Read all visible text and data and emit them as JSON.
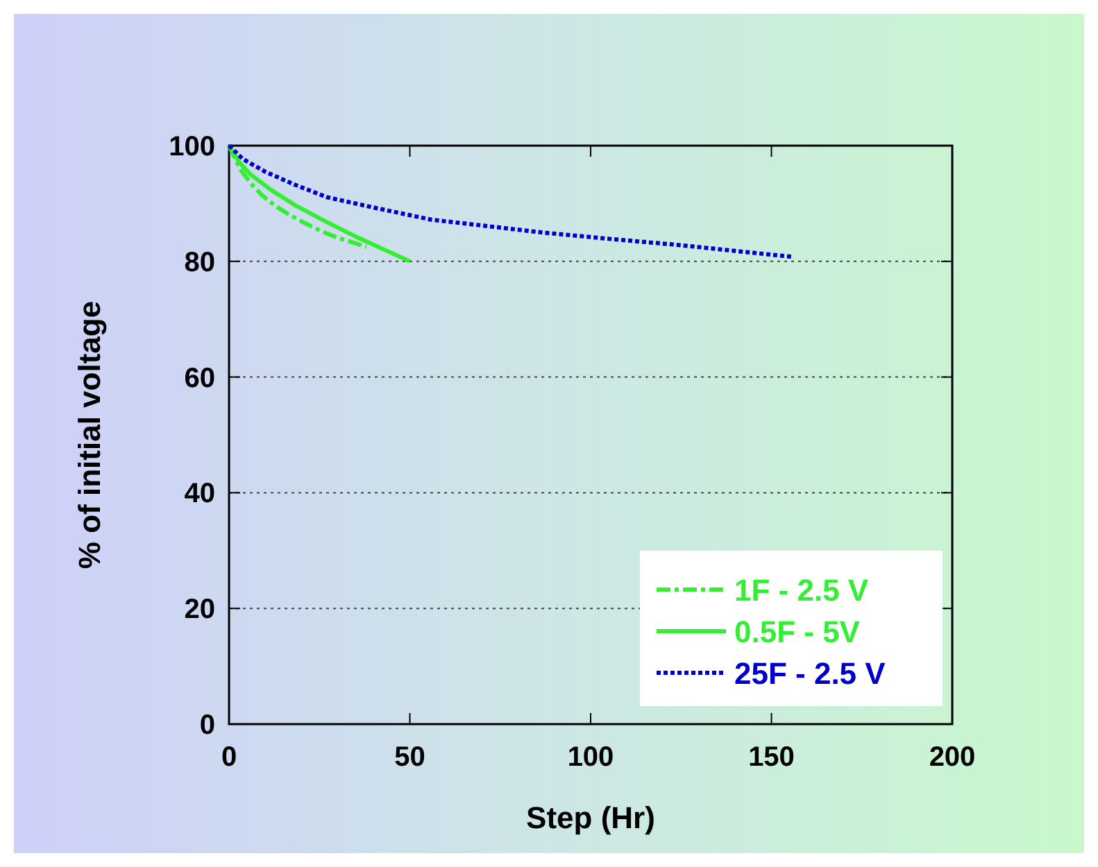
{
  "chart_data": {
    "type": "line",
    "xlabel": "Step (Hr)",
    "ylabel": "% of initial voltage",
    "xlim": [
      0,
      200
    ],
    "ylim": [
      0,
      100
    ],
    "xticks": [
      0,
      50,
      100,
      150,
      200
    ],
    "yticks": [
      0,
      20,
      40,
      60,
      80,
      100
    ],
    "grid": "y",
    "legend": "bottom right",
    "marker": "none",
    "series": [
      {
        "name": "1F - 2.5 V",
        "color": "#33ee33",
        "line_style": "dashdot",
        "x": [
          0,
          3,
          6,
          9,
          13,
          16.6,
          21,
          25.6,
          30,
          34.5,
          38
        ],
        "values": [
          100,
          96,
          93.5,
          91.5,
          89.5,
          88.1,
          86.6,
          85.2,
          84.1,
          83.2,
          82.5
        ]
      },
      {
        "name": "0.5F - 5V",
        "color": "#33ee33",
        "line_style": "solid",
        "x": [
          0,
          3,
          6,
          11.5,
          18,
          27,
          35,
          43,
          50
        ],
        "values": [
          100,
          97,
          95,
          92.4,
          89.8,
          86.8,
          84.3,
          82,
          80
        ]
      },
      {
        "name": "25F - 2.5 V",
        "color": "#0000cc",
        "line_style": "dotted",
        "x": [
          0,
          3.8,
          10,
          18,
          27,
          40,
          56,
          70,
          86.4,
          105,
          124.8,
          140,
          155.5
        ],
        "values": [
          100,
          97.7,
          95.5,
          93.3,
          91.1,
          89.3,
          87.2,
          86.2,
          85,
          83.9,
          82.8,
          81.8,
          80.8
        ]
      }
    ]
  }
}
